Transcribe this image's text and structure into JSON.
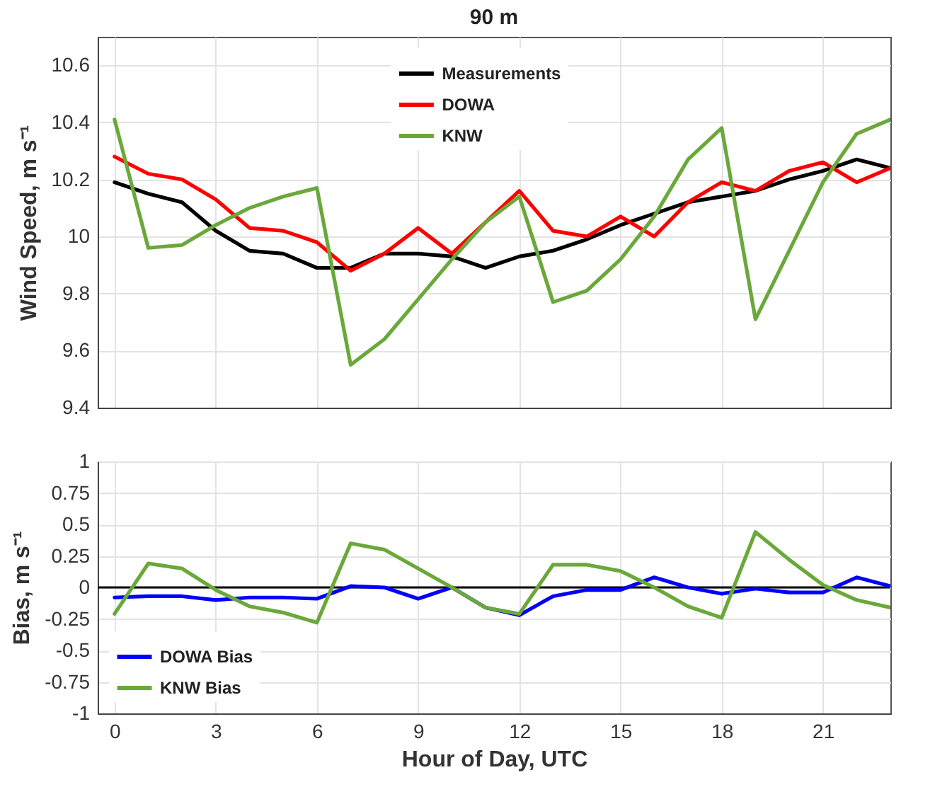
{
  "chart_data": [
    {
      "type": "line",
      "title": "90 m",
      "ylabel": "Wind Speed, m s⁻¹",
      "x": [
        0,
        1,
        2,
        3,
        4,
        5,
        6,
        7,
        8,
        9,
        10,
        11,
        12,
        13,
        14,
        15,
        16,
        17,
        18,
        19,
        20,
        21,
        22,
        23
      ],
      "xlim": [
        -0.5,
        23
      ],
      "xticks": [
        0,
        3,
        6,
        9,
        12,
        15,
        18,
        21
      ],
      "ylim": [
        9.4,
        10.7
      ],
      "yticks": [
        9.4,
        9.6,
        9.8,
        10,
        10.2,
        10.4,
        10.6
      ],
      "grid": true,
      "legend": "top",
      "tick_labels": "y",
      "series": [
        {
          "name": "Measurements",
          "color": "#000000",
          "values": [
            10.19,
            10.15,
            10.12,
            10.02,
            9.95,
            9.94,
            9.89,
            9.89,
            9.94,
            9.94,
            9.93,
            9.89,
            9.93,
            9.95,
            9.99,
            10.04,
            10.08,
            10.12,
            10.14,
            10.16,
            10.2,
            10.23,
            10.27,
            10.24
          ]
        },
        {
          "name": "DOWA",
          "color": "#ff0000",
          "values": [
            10.28,
            10.22,
            10.2,
            10.13,
            10.03,
            10.02,
            9.98,
            9.88,
            9.94,
            10.03,
            9.94,
            10.05,
            10.16,
            10.02,
            10,
            10.07,
            10,
            10.12,
            10.19,
            10.16,
            10.23,
            10.26,
            10.19,
            10.24
          ]
        },
        {
          "name": "KNW",
          "color": "#6aa83a",
          "values": [
            10.41,
            9.96,
            9.97,
            10.04,
            10.1,
            10.14,
            10.17,
            9.55,
            9.64,
            9.78,
            9.92,
            10.05,
            10.14,
            9.77,
            9.81,
            9.92,
            10.07,
            10.27,
            10.38,
            9.71,
            9.95,
            10.19,
            10.36,
            10.41
          ]
        }
      ]
    },
    {
      "type": "line",
      "xlabel": "Hour of Day, UTC",
      "ylabel": "Bias, m s⁻¹",
      "x": [
        0,
        1,
        2,
        3,
        4,
        5,
        6,
        7,
        8,
        9,
        10,
        11,
        12,
        13,
        14,
        15,
        16,
        17,
        18,
        19,
        20,
        21,
        22,
        23
      ],
      "xlim": [
        -0.5,
        23
      ],
      "xticks": [
        0,
        3,
        6,
        9,
        12,
        15,
        18,
        21
      ],
      "ylim": [
        -1,
        1
      ],
      "yticks": [
        -1,
        -0.75,
        -0.5,
        -0.25,
        0,
        0.25,
        0.5,
        0.75,
        1
      ],
      "grid": true,
      "legend": "bottom left",
      "ref_lines": [
        {
          "axis": "y",
          "value": 0,
          "color": "#000000"
        }
      ],
      "series": [
        {
          "name": "DOWA Bias",
          "color": "#0000ff",
          "values": [
            -0.08,
            -0.07,
            -0.07,
            -0.1,
            -0.08,
            -0.08,
            -0.09,
            0.01,
            0,
            -0.09,
            0,
            -0.16,
            -0.22,
            -0.07,
            -0.02,
            -0.02,
            0.08,
            0,
            -0.05,
            -0.01,
            -0.04,
            -0.04,
            0.08,
            0.01
          ]
        },
        {
          "name": "KNW Bias",
          "color": "#6aa83a",
          "values": [
            -0.21,
            0.19,
            0.15,
            -0.02,
            -0.15,
            -0.2,
            -0.28,
            0.35,
            0.3,
            0.15,
            0,
            -0.16,
            -0.21,
            0.18,
            0.18,
            0.13,
            0,
            -0.15,
            -0.24,
            0.44,
            0.22,
            0.02,
            -0.1,
            -0.16
          ]
        }
      ]
    }
  ]
}
